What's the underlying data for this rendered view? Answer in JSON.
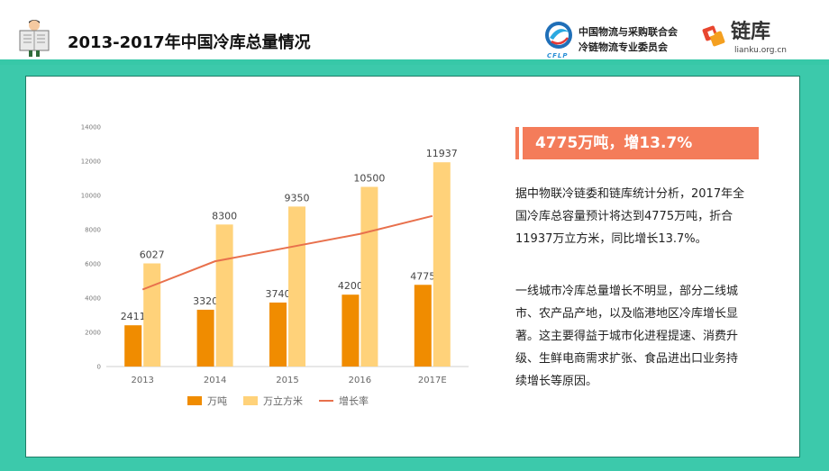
{
  "header": {
    "title": "2013-2017年中国冷库总量情况",
    "org_line1": "中国物流与采购联合会",
    "org_line2": "冷链物流专业委员会",
    "cflp_mark": "CFLP",
    "lianku_name": "链库",
    "lianku_site": "lianku.org.cn"
  },
  "colors": {
    "teal": "#3cc9ab",
    "bar_tons": "#f08c00",
    "bar_volume": "#ffd27a",
    "growth_line": "#e8704c",
    "headline_bg": "#f47c5a"
  },
  "chart_data": {
    "type": "bar",
    "categories": [
      "2013",
      "2014",
      "2015",
      "2016",
      "2017E"
    ],
    "series": [
      {
        "name": "万吨",
        "kind": "bar",
        "values": [
          2411,
          3320,
          3740,
          4200,
          4775
        ]
      },
      {
        "name": "万立方米",
        "kind": "bar",
        "values": [
          6027,
          8300,
          9350,
          10500,
          11937
        ]
      },
      {
        "name": "增长率",
        "kind": "line",
        "values": [
          4500,
          6150,
          6950,
          7750,
          8800
        ]
      }
    ],
    "ylim": [
      0,
      14000
    ],
    "yticks": [
      0,
      2000,
      4000,
      6000,
      8000,
      10000,
      12000,
      14000
    ],
    "legend_position": "bottom",
    "grid": false
  },
  "summary": {
    "headline": "4775万吨，增13.7%",
    "paragraph1_lines": [
      "据中物联冷链委和链库统计分析，2017年全",
      "国冷库总容量预计将达到4775万吨，折合",
      "11937万立方米，同比增长13.7%。"
    ],
    "paragraph2_lines": [
      "一线城市冷库总量增长不明显，部分二线城",
      "市、农产品产地，以及临港地区冷库增长显",
      "著。这主要得益于城市化进程提速、消费升",
      "级、生鲜电商需求扩张、食品进出口业务持",
      "续增长等原因。"
    ]
  }
}
